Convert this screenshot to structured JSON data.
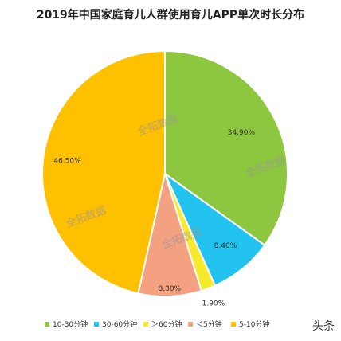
{
  "chart_data": {
    "type": "pie",
    "title": "2019年中国家庭育儿人群使用育儿APP单次时长分布",
    "categories": [
      "10-30分钟",
      "30-60分钟",
      "＞60分钟",
      "＜5分钟",
      "5-10分钟"
    ],
    "values": [
      34.9,
      8.4,
      1.9,
      8.3,
      46.5
    ],
    "value_labels": [
      "34.90%",
      "8.40%",
      "1.90%",
      "8.30%",
      "46.50%"
    ],
    "colors": [
      "#8DC63F",
      "#22C3EE",
      "#F7EA2B",
      "#F4A182",
      "#FFC000"
    ],
    "legend_position": "bottom",
    "start_angle": "top, clockwise"
  },
  "watermark": "全拓数据",
  "brand": "头条"
}
